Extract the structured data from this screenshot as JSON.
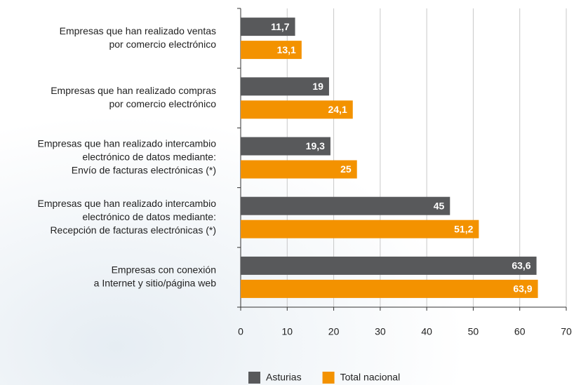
{
  "chart_data": {
    "type": "bar",
    "orientation": "horizontal",
    "categories": [
      [
        "Empresas que han realizado ventas",
        "por comercio electrónico"
      ],
      [
        "Empresas que han realizado compras",
        "por comercio electrónico"
      ],
      [
        "Empresas que han realizado intercambio",
        "electrónico de datos mediante:",
        "Envío de facturas electrónicas (*)"
      ],
      [
        "Empresas que han realizado intercambio",
        "electrónico de datos mediante:",
        "Recepción de facturas electrónicas (*)"
      ],
      [
        "Empresas con conexión",
        "a Internet y sitio/página web"
      ]
    ],
    "series": [
      {
        "name": "Asturias",
        "color": "#58595b",
        "values": [
          11.7,
          19,
          19.3,
          45,
          63.6
        ],
        "value_labels": [
          "11,7",
          "19",
          "19,3",
          "45",
          "63,6"
        ]
      },
      {
        "name": "Total nacional",
        "color": "#f39200",
        "values": [
          13.1,
          24.1,
          25,
          51.2,
          63.9
        ],
        "value_labels": [
          "13,1",
          "24,1",
          "25",
          "51,2",
          "63,9"
        ]
      }
    ],
    "xlim": [
      0,
      70
    ],
    "xticks": [
      0,
      10,
      20,
      30,
      40,
      50,
      60,
      70
    ],
    "grid": true
  }
}
